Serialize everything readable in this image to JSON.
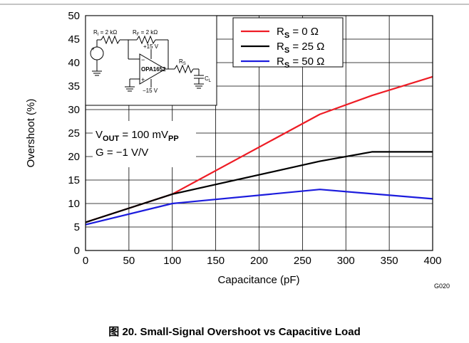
{
  "chart_data": {
    "type": "line",
    "xlabel": "Capacitance (pF)",
    "ylabel": "Overshoot (%)",
    "xlim": [
      0,
      400
    ],
    "ylim": [
      0,
      50
    ],
    "x_ticks": [
      0,
      50,
      100,
      150,
      200,
      250,
      300,
      350,
      400
    ],
    "y_ticks": [
      0,
      5,
      10,
      15,
      20,
      25,
      30,
      35,
      40,
      45,
      50
    ],
    "grid": true,
    "legend_position": "top-right",
    "series": [
      {
        "name_main": "R",
        "name_sub": "S",
        "name_rest": " = 0 Ω",
        "color": "#ee1c25",
        "x": [
          0,
          100,
          270,
          330,
          400
        ],
        "y": [
          6,
          12,
          29,
          33,
          37
        ]
      },
      {
        "name_main": "R",
        "name_sub": "S",
        "name_rest": " = 25 Ω",
        "color": "#000000",
        "x": [
          0,
          100,
          270,
          330,
          400
        ],
        "y": [
          6,
          12,
          19,
          21,
          21
        ]
      },
      {
        "name_main": "R",
        "name_sub": "S",
        "name_rest": " = 50 Ω",
        "color": "#1c1cdd",
        "x": [
          0,
          100,
          270,
          400
        ],
        "y": [
          5.5,
          10,
          13,
          11
        ]
      }
    ],
    "annotations": [
      {
        "main": "V",
        "sub": "OUT",
        "rest": " = 100 mV",
        "sub2": "PP"
      },
      {
        "main": "G = −1 V/V",
        "sub": "",
        "rest": "",
        "sub2": ""
      }
    ],
    "inset": {
      "ri": "R",
      "ri_sub": "I",
      "ri_val": " = 2 kΩ",
      "rf": "R",
      "rf_sub": "F",
      "rf_val": " = 2 kΩ",
      "vpos": "+15 V",
      "vneg": "−15 V",
      "opamp": "OPA1652",
      "rs": "R",
      "rs_sub": "S",
      "cl": "C",
      "cl_sub": "L",
      "plus": "+",
      "minus": "−"
    },
    "code": "G020"
  },
  "caption": {
    "prefix": "图",
    "text": " 20. Small-Signal Overshoot vs Capacitive Load"
  }
}
